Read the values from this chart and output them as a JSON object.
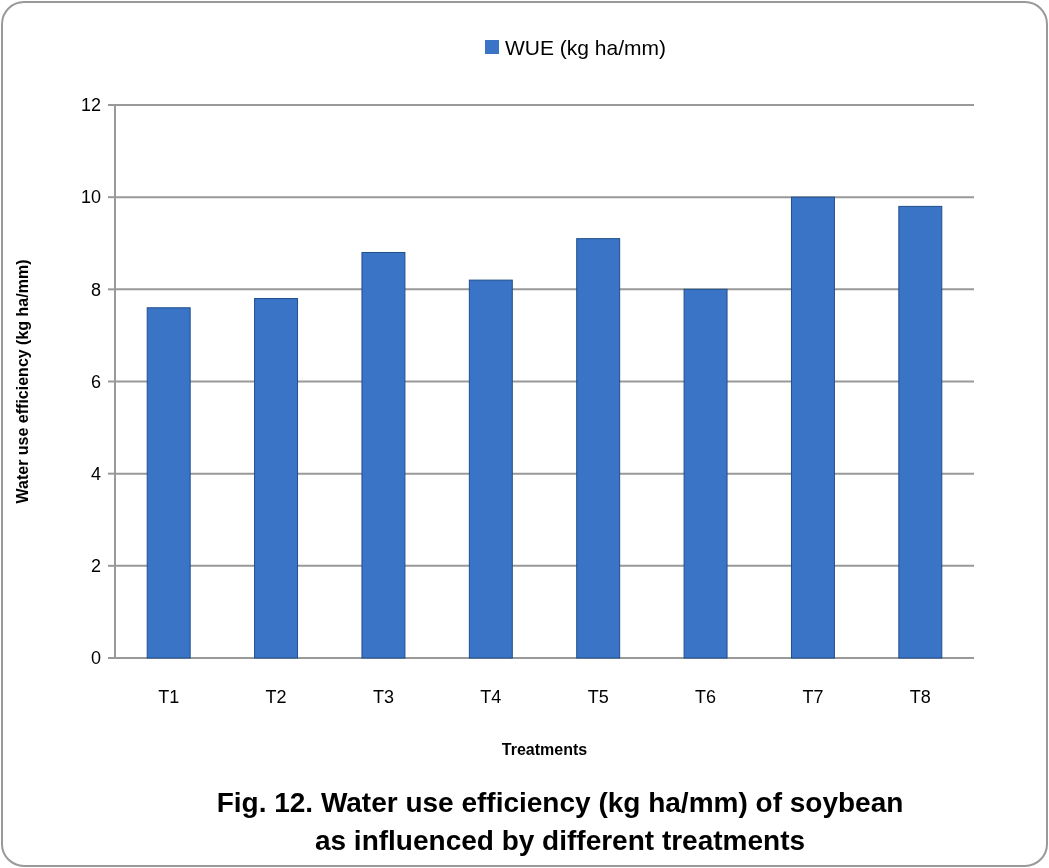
{
  "chart_data": {
    "type": "bar",
    "title": "Fig. 12.  Water use efficiency (kg ha/mm) of soybean as influenced by different treatments",
    "xlabel": "Treatments",
    "ylabel": "Water use efficiency (kg ha/mm)",
    "categories": [
      "T1",
      "T2",
      "T3",
      "T4",
      "T5",
      "T6",
      "T7",
      "T8"
    ],
    "series": [
      {
        "name": "WUE (kg ha/mm)",
        "color": "#3a74c6",
        "values": [
          7.6,
          7.8,
          8.8,
          8.2,
          9.1,
          8.0,
          10.0,
          9.8
        ]
      }
    ],
    "ylim": [
      0,
      12
    ],
    "yticks": [
      0,
      2,
      4,
      6,
      8,
      10,
      12
    ],
    "grid": "y",
    "legend": "top"
  }
}
